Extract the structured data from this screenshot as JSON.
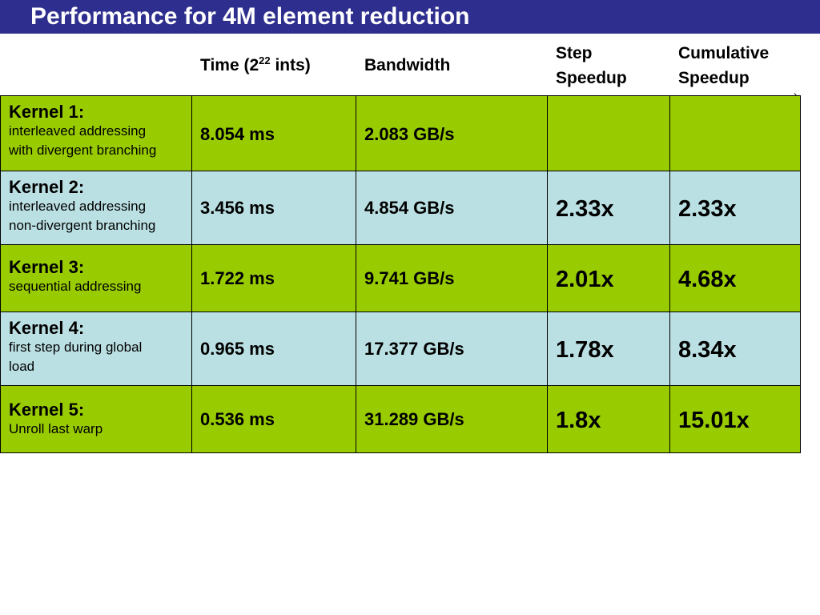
{
  "title": "Performance for 4M element reduction",
  "header": {
    "time_prefix": "Time (2",
    "time_exponent": "22",
    "time_suffix": " ints)",
    "bandwidth": "Bandwidth",
    "step_line1": "Step",
    "step_line2": "Speedup",
    "cum_line1": "Cumulative",
    "cum_line2": "Speedup"
  },
  "rows": [
    {
      "name": "Kernel 1:",
      "desc": [
        "interleaved addressing",
        "with divergent branching"
      ],
      "time": "8.054 ms",
      "bandwidth": "2.083 GB/s",
      "step": "",
      "cumulative": ""
    },
    {
      "name": "Kernel 2:",
      "desc": [
        "interleaved addressing",
        "non-divergent branching"
      ],
      "time": "3.456 ms",
      "bandwidth": "4.854 GB/s",
      "step": "2.33x",
      "cumulative": "2.33x"
    },
    {
      "name": "Kernel 3:",
      "desc": [
        "sequential addressing",
        ""
      ],
      "time": "1.722 ms",
      "bandwidth": "9.741 GB/s",
      "step": "2.01x",
      "cumulative": "4.68x"
    },
    {
      "name": "Kernel 4:",
      "desc": [
        "first step during global",
        "load"
      ],
      "time": "0.965 ms",
      "bandwidth": "17.377 GB/s",
      "step": "1.78x",
      "cumulative": "8.34x"
    },
    {
      "name": "Kernel 5:",
      "desc": [
        "Unroll last warp",
        ""
      ],
      "time": "0.536 ms",
      "bandwidth": "31.289 GB/s",
      "step": "1.8x",
      "cumulative": "15.01x"
    }
  ],
  "colors": {
    "title_bar": "#2e2e8e",
    "row_green": "#99cc00",
    "row_blue": "#bbe0e3"
  }
}
